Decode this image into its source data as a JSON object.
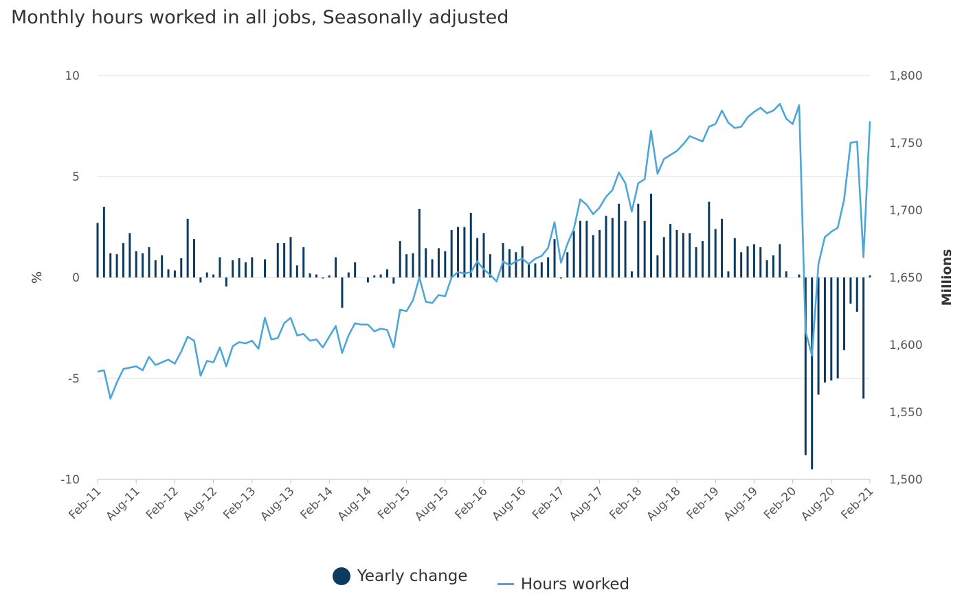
{
  "title": "Monthly hours worked in all jobs, Seasonally adjusted",
  "chart_data": {
    "type": "bar+line",
    "title": "Monthly hours worked in all jobs, Seasonally adjusted",
    "ylabel_left": "%",
    "ylabel_right": "Millions",
    "ylim_left": [
      -10,
      10
    ],
    "ylim_right": [
      1500,
      1800
    ],
    "yticks_left": [
      "10",
      "5",
      "0",
      "-5",
      "-10"
    ],
    "yticks_right": [
      "1,800",
      "1,750",
      "1,700",
      "1,650",
      "1,600",
      "1,550",
      "1,500"
    ],
    "x_tick_labels": [
      "Feb-11",
      "Aug-11",
      "Feb-12",
      "Aug-12",
      "Feb-13",
      "Aug-13",
      "Feb-14",
      "Aug-14",
      "Feb-15",
      "Aug-15",
      "Feb-16",
      "Aug-16",
      "Feb-17",
      "Aug-17",
      "Feb-18",
      "Aug-18",
      "Feb-19",
      "Aug-19",
      "Feb-20",
      "Aug-20",
      "Feb-21"
    ],
    "x_start": "Feb-11",
    "x_end": "Feb-21",
    "grid": true,
    "legend_position": "bottom",
    "colors": {
      "bars": "#0d3a5f",
      "line": "#4da6d9",
      "grid": "#dcdcdc"
    },
    "series": [
      {
        "name": "Yearly change",
        "type": "bar",
        "axis": "left",
        "values": [
          2.7,
          3.5,
          1.2,
          1.15,
          1.7,
          2.2,
          1.3,
          1.2,
          1.5,
          0.85,
          1.1,
          0.4,
          0.35,
          0.95,
          2.9,
          1.9,
          -0.25,
          0.25,
          0.15,
          1.0,
          -0.45,
          0.85,
          0.95,
          0.75,
          1.0,
          0.0,
          0.9,
          0.0,
          1.7,
          1.7,
          2.0,
          0.6,
          1.5,
          0.2,
          0.15,
          -0.05,
          0.1,
          1.0,
          -1.5,
          0.25,
          0.75,
          0.0,
          -0.25,
          0.1,
          0.15,
          0.4,
          -0.3,
          1.8,
          1.15,
          1.2,
          3.4,
          1.45,
          0.9,
          1.45,
          1.3,
          2.35,
          2.5,
          2.5,
          3.2,
          1.95,
          2.2,
          1.15,
          0.0,
          1.7,
          1.4,
          1.25,
          1.55,
          0.65,
          0.7,
          0.75,
          1.0,
          1.9,
          -0.05,
          1.25,
          2.3,
          2.8,
          2.8,
          2.1,
          2.35,
          3.05,
          2.95,
          3.65,
          2.8,
          0.3,
          3.65,
          2.8,
          4.15,
          1.1,
          2.0,
          2.65,
          2.35,
          2.2,
          2.2,
          1.5,
          1.8,
          3.75,
          2.4,
          2.9,
          0.3,
          1.95,
          1.25,
          1.55,
          1.65,
          1.5,
          0.85,
          1.1,
          1.65,
          0.3,
          0.0,
          0.15,
          -8.8,
          -9.5,
          -5.8,
          -5.2,
          -5.1,
          -5.0,
          -3.6,
          -1.3,
          -1.7,
          -6.0,
          0.1
        ]
      },
      {
        "name": "Hours worked",
        "type": "line",
        "axis": "right",
        "values": [
          1580,
          1581,
          1560,
          1572,
          1582,
          1583,
          1584,
          1581,
          1591,
          1585,
          1587,
          1589,
          1586,
          1595,
          1606,
          1603,
          1577,
          1588,
          1587,
          1598,
          1584,
          1599,
          1602,
          1601,
          1603,
          1597,
          1620,
          1604,
          1605,
          1616,
          1620,
          1607,
          1608,
          1603,
          1604,
          1598,
          1606,
          1614,
          1594,
          1607,
          1616,
          1615,
          1615,
          1610,
          1612,
          1611,
          1598,
          1626,
          1625,
          1633,
          1650,
          1632,
          1631,
          1637,
          1636,
          1650,
          1654,
          1653,
          1654,
          1662,
          1656,
          1652,
          1647,
          1662,
          1659,
          1662,
          1664,
          1660,
          1664,
          1666,
          1672,
          1691,
          1661,
          1675,
          1686,
          1708,
          1704,
          1697,
          1702,
          1710,
          1715,
          1728,
          1720,
          1699,
          1720,
          1723,
          1759,
          1727,
          1738,
          1741,
          1744,
          1749,
          1755,
          1753,
          1751,
          1762,
          1764,
          1774,
          1765,
          1761,
          1762,
          1769,
          1773,
          1776,
          1772,
          1774,
          1779,
          1768,
          1764,
          1778,
          1610,
          1592,
          1660,
          1680,
          1684,
          1687,
          1708,
          1750,
          1751,
          1665,
          1766
        ]
      }
    ]
  },
  "legend": {
    "bar_label": "Yearly change",
    "line_label": "Hours worked"
  }
}
